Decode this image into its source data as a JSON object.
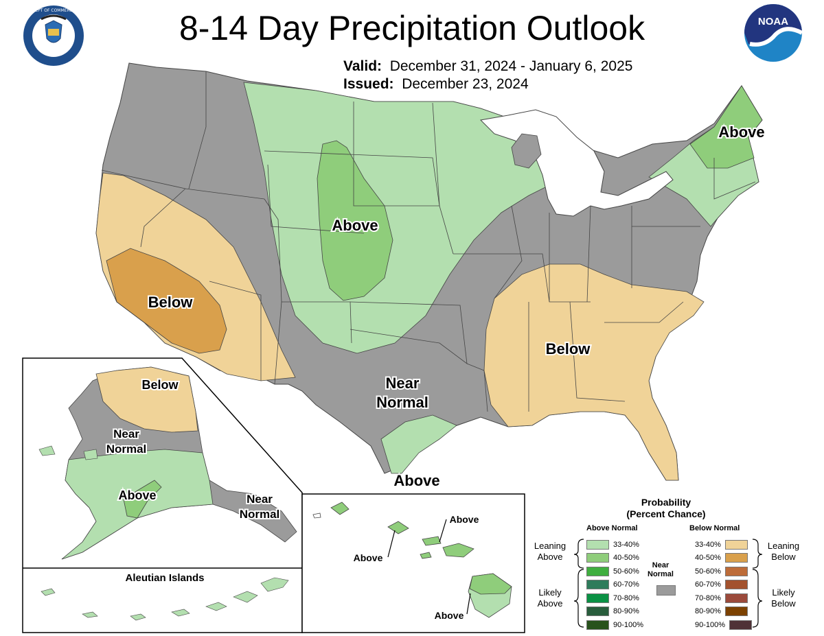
{
  "title": "8-14 Day Precipitation Outlook",
  "valid_label": "Valid:",
  "valid_dates": "December 31, 2024 - January 6, 2025",
  "issued_label": "Issued:",
  "issued_date": "December 23, 2024",
  "logos": {
    "commerce": {
      "text": "DEPARTMENT OF COMMERCE · UNITED STATES OF AMERICA"
    },
    "noaa": {
      "text": "NOAA"
    }
  },
  "map_labels": {
    "conus_above_plains": "Above",
    "conus_above_northeast": "Above",
    "conus_below_west": "Below",
    "conus_below_southeast": "Below",
    "conus_near_normal_1": "Near",
    "conus_near_normal_2": "Normal",
    "conus_above_texas": "Above",
    "ak_below": "Below",
    "ak_near_1": "Near",
    "ak_near_2": "Normal",
    "ak_above": "Above",
    "ak_se_near_1": "Near",
    "ak_se_near_2": "Normal",
    "aleutian": "Aleutian Islands",
    "hi_above_1": "Above",
    "hi_above_2": "Above",
    "hi_above_3": "Above"
  },
  "colors": {
    "near_normal": "#9b9b9b",
    "above_33_40": "#b3dfaf",
    "above_40_50": "#8fcd7b",
    "below_33_40": "#f0d398",
    "below_40_50": "#d9a04c",
    "water": "#ffffff"
  },
  "legend": {
    "title_1": "Probability",
    "title_2": "(Percent Chance)",
    "above_header": "Above Normal",
    "below_header": "Below Normal",
    "near_1": "Near",
    "near_2": "Normal",
    "near_color": "#9b9b9b",
    "leaning_above_1": "Leaning",
    "leaning_above_2": "Above",
    "likely_above_1": "Likely",
    "likely_above_2": "Above",
    "leaning_below_1": "Leaning",
    "leaning_below_2": "Below",
    "likely_below_1": "Likely",
    "likely_below_2": "Below",
    "above": [
      {
        "label": "33-40%",
        "color": "#b3dfaf"
      },
      {
        "label": "40-50%",
        "color": "#8fcd7b"
      },
      {
        "label": "50-60%",
        "color": "#3fae3f"
      },
      {
        "label": "60-70%",
        "color": "#2e7c5b"
      },
      {
        "label": "70-80%",
        "color": "#0a9144"
      },
      {
        "label": "80-90%",
        "color": "#285d3c"
      },
      {
        "label": "90-100%",
        "color": "#28521c"
      }
    ],
    "below": [
      {
        "label": "33-40%",
        "color": "#f0d398"
      },
      {
        "label": "40-50%",
        "color": "#d9a04c"
      },
      {
        "label": "50-60%",
        "color": "#bd6c39"
      },
      {
        "label": "60-70%",
        "color": "#a3522e"
      },
      {
        "label": "70-80%",
        "color": "#9b4a3b"
      },
      {
        "label": "80-90%",
        "color": "#7c4100"
      },
      {
        "label": "90-100%",
        "color": "#4f3237"
      }
    ]
  }
}
